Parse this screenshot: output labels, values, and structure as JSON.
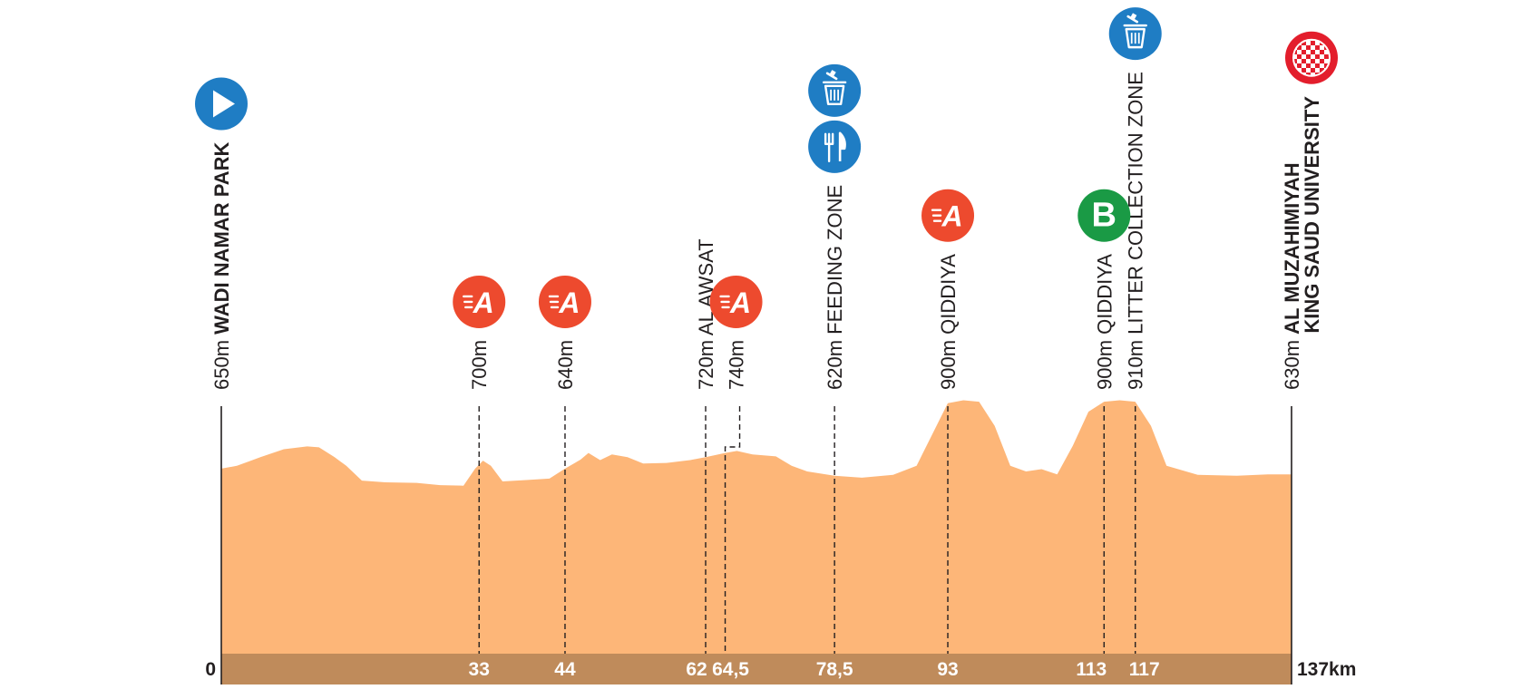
{
  "chart_data": {
    "type": "area",
    "total_km": 137,
    "start_label": "0",
    "end_label": "137km",
    "elevation_range_m": [
      0,
      1000
    ],
    "colors": {
      "profile_fill": "#fdb678",
      "distance_band": "#bf8b5b",
      "distance_text": "#ffffff",
      "intermediate_sprint": "#ed4a2e",
      "bonus_sprint": "#1a9a45",
      "service": "#1f7dc4",
      "finish": "#e31e2c",
      "text": "#231f20"
    },
    "profile": [
      {
        "km": 0,
        "elev": 650
      },
      {
        "km": 2,
        "elev": 660
      },
      {
        "km": 5,
        "elev": 690
      },
      {
        "km": 8,
        "elev": 718
      },
      {
        "km": 11,
        "elev": 728
      },
      {
        "km": 12.5,
        "elev": 725
      },
      {
        "km": 14.5,
        "elev": 690
      },
      {
        "km": 16,
        "elev": 660
      },
      {
        "km": 18,
        "elev": 608
      },
      {
        "km": 21,
        "elev": 602
      },
      {
        "km": 25,
        "elev": 600
      },
      {
        "km": 28,
        "elev": 592
      },
      {
        "km": 31,
        "elev": 590
      },
      {
        "km": 32.5,
        "elev": 650
      },
      {
        "km": 33.5,
        "elev": 678
      },
      {
        "km": 34.5,
        "elev": 660
      },
      {
        "km": 36,
        "elev": 605
      },
      {
        "km": 39,
        "elev": 610
      },
      {
        "km": 42,
        "elev": 615
      },
      {
        "km": 44,
        "elev": 650
      },
      {
        "km": 46,
        "elev": 682
      },
      {
        "km": 47,
        "elev": 705
      },
      {
        "km": 48.5,
        "elev": 680
      },
      {
        "km": 50,
        "elev": 700
      },
      {
        "km": 52,
        "elev": 690
      },
      {
        "km": 54,
        "elev": 668
      },
      {
        "km": 57,
        "elev": 670
      },
      {
        "km": 60,
        "elev": 680
      },
      {
        "km": 62,
        "elev": 690
      },
      {
        "km": 64.5,
        "elev": 705
      },
      {
        "km": 66,
        "elev": 712
      },
      {
        "km": 68,
        "elev": 700
      },
      {
        "km": 71,
        "elev": 693
      },
      {
        "km": 73,
        "elev": 660
      },
      {
        "km": 75,
        "elev": 640
      },
      {
        "km": 78.5,
        "elev": 625
      },
      {
        "km": 82,
        "elev": 618
      },
      {
        "km": 86,
        "elev": 628
      },
      {
        "km": 89,
        "elev": 660
      },
      {
        "km": 91,
        "elev": 770
      },
      {
        "km": 93,
        "elev": 880
      },
      {
        "km": 95,
        "elev": 890
      },
      {
        "km": 97,
        "elev": 885
      },
      {
        "km": 99,
        "elev": 800
      },
      {
        "km": 101,
        "elev": 660
      },
      {
        "km": 103,
        "elev": 640
      },
      {
        "km": 105,
        "elev": 648
      },
      {
        "km": 107,
        "elev": 630
      },
      {
        "km": 109,
        "elev": 730
      },
      {
        "km": 111,
        "elev": 850
      },
      {
        "km": 113,
        "elev": 885
      },
      {
        "km": 115,
        "elev": 890
      },
      {
        "km": 117,
        "elev": 885
      },
      {
        "km": 119,
        "elev": 800
      },
      {
        "km": 121,
        "elev": 660
      },
      {
        "km": 125,
        "elev": 628
      },
      {
        "km": 130,
        "elev": 625
      },
      {
        "km": 134,
        "elev": 630
      },
      {
        "km": 137,
        "elev": 630
      }
    ],
    "points": [
      {
        "km": 0,
        "tick": "",
        "elev_label": "650m",
        "name": "WADI NAMAR PARK",
        "name2": "",
        "bold": true,
        "icons": [
          "start"
        ]
      },
      {
        "km": 33,
        "tick": "33",
        "elev_label": "700m",
        "name": "",
        "name2": "",
        "bold": false,
        "icons": [
          "intermediate-sprint"
        ]
      },
      {
        "km": 44,
        "tick": "44",
        "elev_label": "640m",
        "name": "",
        "name2": "",
        "bold": false,
        "icons": [
          "intermediate-sprint"
        ]
      },
      {
        "km": 62,
        "tick": "62",
        "elev_label": "720m",
        "name": "AL AWSAT",
        "name2": "",
        "bold": false,
        "icons": []
      },
      {
        "km": 64.5,
        "tick": "64,5",
        "elev_label": "740m",
        "name": "",
        "name2": "",
        "bold": false,
        "icons": [
          "intermediate-sprint"
        ]
      },
      {
        "km": 78.5,
        "tick": "78,5",
        "elev_label": "620m",
        "name": "FEEDING ZONE",
        "name2": "",
        "bold": false,
        "icons": [
          "feed",
          "litter"
        ]
      },
      {
        "km": 93,
        "tick": "93",
        "elev_label": "900m",
        "name": "QIDDIYA",
        "name2": "",
        "bold": false,
        "icons": [
          "intermediate-sprint"
        ]
      },
      {
        "km": 113,
        "tick": "113",
        "elev_label": "900m",
        "name": "QIDDIYA",
        "name2": "",
        "bold": false,
        "icons": [
          "bonus-sprint"
        ]
      },
      {
        "km": 117,
        "tick": "117",
        "elev_label": "910m",
        "name": "LITTER COLLECTION ZONE",
        "name2": "",
        "bold": false,
        "icons": [
          "litter"
        ]
      },
      {
        "km": 137,
        "tick": "",
        "elev_label": "630m",
        "name": "AL MUZAHIMIYAH",
        "name2": "KING SAUD UNIVERSITY",
        "bold": true,
        "icons": [
          "finish"
        ]
      }
    ],
    "icon_letters": {
      "intermediate_sprint": "A",
      "bonus_sprint": "B"
    }
  }
}
